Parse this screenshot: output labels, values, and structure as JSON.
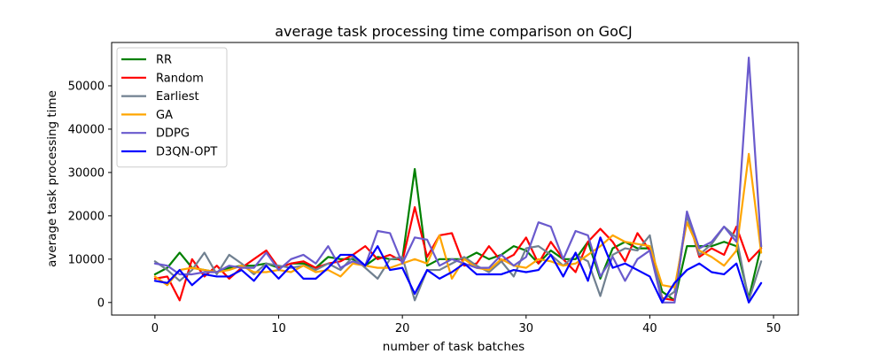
{
  "chart_data": {
    "type": "line",
    "title": "average task processing time comparison on GoCJ",
    "xlabel": "number of task batches",
    "ylabel": "average task processing time",
    "xlim": [
      -3.5,
      52
    ],
    "ylim": [
      -2900,
      60000
    ],
    "xticks": [
      0,
      10,
      20,
      30,
      40,
      50
    ],
    "xtick_labels": [
      "0",
      "10",
      "20",
      "30",
      "40",
      "50"
    ],
    "yticks": [
      0,
      10000,
      20000,
      30000,
      40000,
      50000
    ],
    "ytick_labels": [
      "0",
      "10000",
      "20000",
      "30000",
      "40000",
      "50000"
    ],
    "legend_position": "upper-left",
    "grid": false,
    "x": [
      0,
      1,
      2,
      3,
      4,
      5,
      6,
      7,
      8,
      9,
      10,
      11,
      12,
      13,
      14,
      15,
      16,
      17,
      18,
      19,
      20,
      21,
      22,
      23,
      24,
      25,
      26,
      27,
      28,
      29,
      30,
      31,
      32,
      33,
      34,
      35,
      36,
      37,
      38,
      39,
      40,
      41,
      42,
      43,
      44,
      45,
      46,
      47,
      48,
      49
    ],
    "series": [
      {
        "name": "RR",
        "color": "#008000",
        "values": [
          6500,
          8000,
          11500,
          8000,
          7500,
          7000,
          8000,
          8500,
          8500,
          9000,
          8000,
          9000,
          9000,
          8000,
          10500,
          10000,
          10000,
          8500,
          10500,
          10000,
          10000,
          30800,
          8500,
          10000,
          10000,
          10000,
          11500,
          10000,
          11000,
          13000,
          12000,
          9000,
          12000,
          10000,
          10000,
          14000,
          5500,
          12500,
          14000,
          12500,
          12500,
          2500,
          500,
          13000,
          13000,
          13000,
          14000,
          13000,
          1000,
          13000
        ]
      },
      {
        "name": "Random",
        "color": "#ff0000",
        "values": [
          5500,
          6000,
          500,
          10000,
          6000,
          8500,
          5500,
          8000,
          10000,
          12000,
          8000,
          9000,
          9500,
          8000,
          9000,
          9500,
          11000,
          13000,
          10000,
          11000,
          9500,
          22000,
          10500,
          15500,
          16000,
          8500,
          9000,
          13000,
          9500,
          11000,
          15000,
          9000,
          14000,
          10000,
          7000,
          14000,
          17000,
          14000,
          9500,
          16000,
          12000,
          1000,
          500,
          20500,
          10500,
          12500,
          11000,
          17500,
          9500,
          12500
        ]
      },
      {
        "name": "Earliest",
        "color": "#708090",
        "values": [
          9500,
          7500,
          5000,
          7500,
          11500,
          6500,
          11000,
          9000,
          6500,
          9000,
          8500,
          8000,
          8500,
          7500,
          9000,
          7500,
          10500,
          8000,
          5500,
          10000,
          10500,
          500,
          7500,
          7500,
          9000,
          10500,
          8500,
          7000,
          9500,
          6000,
          12500,
          13000,
          11000,
          8500,
          11000,
          9500,
          1500,
          11000,
          12500,
          12000,
          15500,
          500,
          2500,
          20000,
          11000,
          13500,
          17500,
          15000,
          500,
          9500
        ]
      },
      {
        "name": "GA",
        "color": "#ffa500",
        "values": [
          6000,
          4000,
          7500,
          8000,
          7500,
          7000,
          7500,
          8500,
          7000,
          7000,
          7500,
          7000,
          8500,
          7000,
          7500,
          6000,
          9000,
          8500,
          8000,
          8000,
          9000,
          10000,
          9000,
          15500,
          5500,
          10000,
          8000,
          7500,
          10000,
          8500,
          8000,
          10000,
          9500,
          8500,
          9000,
          11000,
          13000,
          15500,
          14000,
          13500,
          13000,
          4000,
          3500,
          18500,
          12000,
          10500,
          8500,
          12000,
          34300,
          11500
        ]
      },
      {
        "name": "DDPG",
        "color": "#6a5acd",
        "values": [
          9000,
          8500,
          6500,
          6500,
          7000,
          7000,
          8500,
          8000,
          8000,
          11500,
          7500,
          10000,
          11000,
          9000,
          13000,
          8000,
          9500,
          8500,
          16500,
          16000,
          9000,
          15000,
          14500,
          8500,
          10000,
          9000,
          8000,
          8000,
          11000,
          8500,
          10500,
          18500,
          17500,
          10000,
          16500,
          15500,
          6000,
          10500,
          5000,
          10000,
          12000,
          0,
          0,
          21000,
          12500,
          14000,
          17500,
          14000,
          56500,
          13000
        ]
      },
      {
        "name": "D3QN-OPT",
        "color": "#0000ff",
        "values": [
          5000,
          4500,
          7500,
          4000,
          6500,
          6000,
          6000,
          7500,
          5000,
          8500,
          5500,
          8500,
          5500,
          5500,
          8000,
          11000,
          11000,
          8500,
          13000,
          7500,
          8000,
          2000,
          7500,
          5500,
          7000,
          9000,
          6500,
          6500,
          6500,
          7500,
          7000,
          7500,
          11000,
          6000,
          11500,
          5000,
          15000,
          8000,
          9000,
          7500,
          6000,
          0,
          4500,
          7500,
          9000,
          7000,
          6500,
          9000,
          0,
          4500
        ]
      }
    ]
  }
}
